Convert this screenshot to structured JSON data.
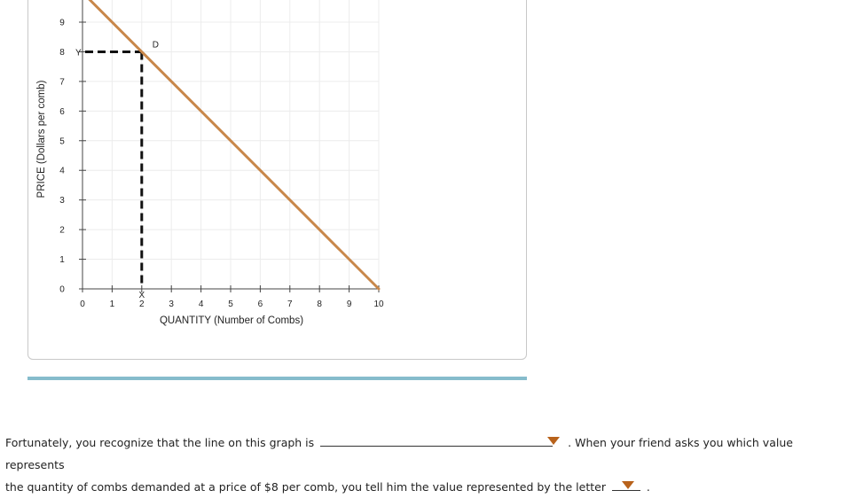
{
  "chart_data": {
    "type": "line",
    "xlabel": "QUANTITY (Number of Combs)",
    "ylabel": "PRICE (Dollars per comb)",
    "xlim": [
      0,
      10
    ],
    "ylim": [
      0,
      9
    ],
    "xticks": [
      "0",
      "1",
      "2",
      "3",
      "4",
      "5",
      "6",
      "7",
      "8",
      "9",
      "10"
    ],
    "yticks": [
      "0",
      "1",
      "2",
      "3",
      "4",
      "5",
      "6",
      "7",
      "8",
      "9"
    ],
    "grid": true,
    "series": [
      {
        "name": "D",
        "x": [
          0,
          10
        ],
        "y": [
          10,
          0
        ],
        "color": "#c8874a"
      }
    ],
    "guide": {
      "x": 2,
      "y": 8,
      "x_label": "X",
      "y_label": "Y",
      "color": "#111111"
    }
  },
  "question": {
    "part1": "Fortunately, you recognize that the line on this graph is",
    "part2": ". When your friend asks you which value represents",
    "part3": "the quantity of combs demanded at a price of $8 per comb, you tell him the value represented by the letter",
    "part4": "."
  }
}
